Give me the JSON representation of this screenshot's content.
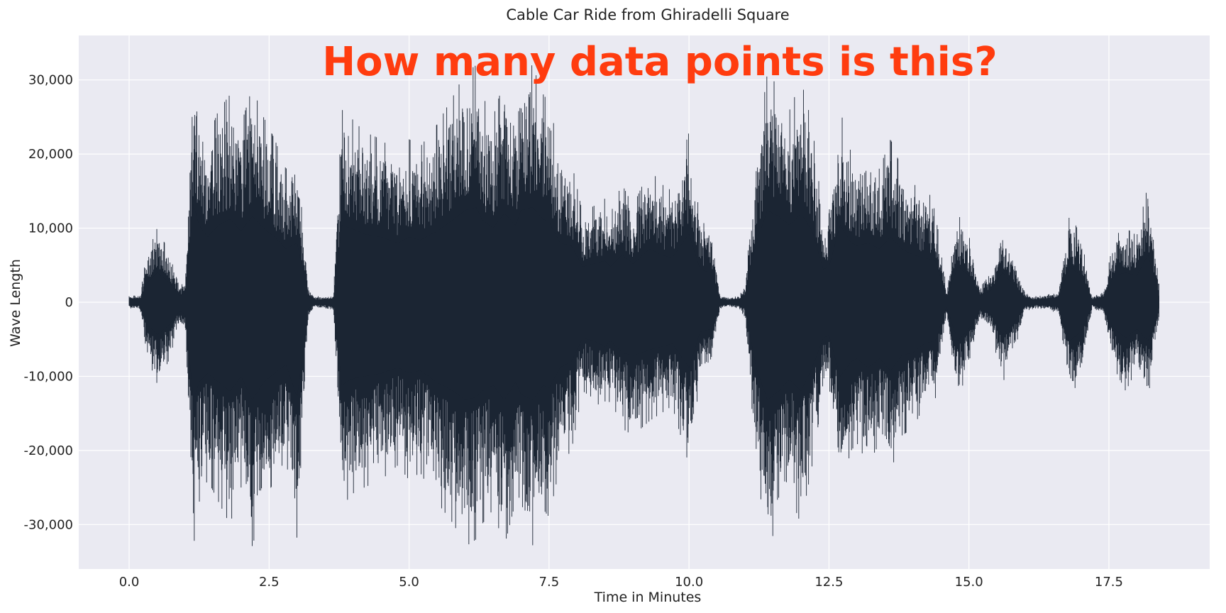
{
  "chart_data": {
    "type": "line",
    "title": "Cable Car Ride from Ghiradelli Square",
    "xlabel": "Time in Minutes",
    "ylabel": "Wave Length",
    "annotation": "How many data points is this?",
    "xlim": [
      -0.9,
      19.3
    ],
    "ylim": [
      -36000,
      36000
    ],
    "x_ticks": [
      0.0,
      2.5,
      5.0,
      7.5,
      10.0,
      12.5,
      15.0,
      17.5
    ],
    "x_tick_labels": [
      "0.0",
      "2.5",
      "5.0",
      "7.5",
      "10.0",
      "12.5",
      "15.0",
      "17.5"
    ],
    "y_ticks": [
      30000,
      20000,
      10000,
      0,
      -10000,
      -20000,
      -30000
    ],
    "y_tick_labels": [
      "30,000",
      "20,000",
      "10,000",
      "0",
      "-10,000",
      "-20,000",
      "-30,000"
    ],
    "grid": true,
    "series": [
      {
        "x": [
          0.0,
          0.2,
          0.3,
          0.5,
          0.7,
          0.9,
          1.0,
          1.15,
          1.25,
          1.4,
          1.6,
          1.8,
          2.0,
          2.2,
          2.4,
          2.6,
          2.8,
          3.0,
          3.2,
          3.3,
          3.5,
          3.65,
          3.8,
          3.95,
          4.2,
          4.5,
          4.8,
          5.0,
          5.2,
          5.5,
          5.8,
          6.0,
          6.2,
          6.3,
          6.5,
          6.7,
          6.9,
          7.0,
          7.2,
          7.4,
          7.5,
          7.7,
          7.9,
          8.1,
          8.3,
          8.5,
          8.6,
          8.8,
          9.0,
          9.3,
          9.5,
          9.7,
          10.0,
          10.2,
          10.4,
          10.55,
          10.7,
          10.9,
          11.0,
          11.2,
          11.4,
          11.6,
          11.8,
          12.0,
          12.2,
          12.4,
          12.5,
          12.7,
          12.9,
          13.0,
          13.2,
          13.4,
          13.6,
          13.8,
          14.0,
          14.2,
          14.4,
          14.6,
          14.8,
          15.0,
          15.2,
          15.4,
          15.6,
          15.8,
          16.0,
          16.2,
          16.4,
          16.6,
          16.8,
          17.0,
          17.2,
          17.4,
          17.6,
          17.8,
          18.0,
          18.2,
          18.4
        ],
        "upper": [
          800,
          1000,
          6000,
          10000,
          7000,
          2000,
          3000,
          33000,
          26000,
          22000,
          26000,
          28000,
          24000,
          29000,
          25000,
          22000,
          18000,
          20000,
          2000,
          800,
          800,
          1000,
          26000,
          25000,
          23000,
          22000,
          20000,
          22000,
          21000,
          24000,
          28000,
          31000,
          32000,
          28000,
          25000,
          30000,
          26000,
          31000,
          32000,
          28000,
          27000,
          20000,
          19000,
          12000,
          13000,
          14000,
          12000,
          16000,
          13000,
          18000,
          16000,
          15000,
          23000,
          11000,
          10000,
          1000,
          600,
          1000,
          2000,
          20000,
          31000,
          29000,
          26000,
          30000,
          24000,
          11000,
          12000,
          26000,
          20000,
          19000,
          20000,
          18000,
          22000,
          18000,
          16000,
          15000,
          14000,
          1500,
          12000,
          9000,
          2000,
          4000,
          10000,
          6000,
          1200,
          800,
          1000,
          1500,
          12000,
          9000,
          800,
          1500,
          9000,
          10000,
          9000,
          16000,
          2000
        ],
        "lower": [
          -800,
          -1000,
          -7000,
          -11000,
          -8000,
          -3000,
          -4000,
          -33000,
          -27000,
          -24000,
          -27000,
          -30000,
          -25000,
          -33000,
          -27000,
          -24000,
          -21000,
          -32000,
          -2000,
          -800,
          -800,
          -1000,
          -28000,
          -26000,
          -25000,
          -24000,
          -22000,
          -24000,
          -23000,
          -27000,
          -30000,
          -33000,
          -32000,
          -30000,
          -28000,
          -33000,
          -27000,
          -31000,
          -33000,
          -28000,
          -29000,
          -22000,
          -20000,
          -12000,
          -13000,
          -15000,
          -13000,
          -17000,
          -18000,
          -16000,
          -15000,
          -14000,
          -22000,
          -10000,
          -9000,
          -1000,
          -600,
          -1000,
          -2000,
          -22000,
          -33000,
          -30000,
          -26000,
          -30000,
          -22000,
          -12000,
          -11000,
          -25000,
          -20000,
          -19000,
          -22000,
          -19000,
          -23000,
          -18000,
          -17000,
          -14000,
          -13000,
          -1500,
          -13000,
          -9000,
          -2000,
          -4000,
          -11000,
          -7000,
          -1200,
          -800,
          -1000,
          -1500,
          -13000,
          -10000,
          -800,
          -1500,
          -9000,
          -12000,
          -9000,
          -13000,
          -2000
        ]
      }
    ],
    "colors": {
      "plot_background": "#eaeaf2",
      "grid": "#ffffff",
      "waveform": "#1b2533",
      "annotation": "#ff3c0f"
    }
  }
}
